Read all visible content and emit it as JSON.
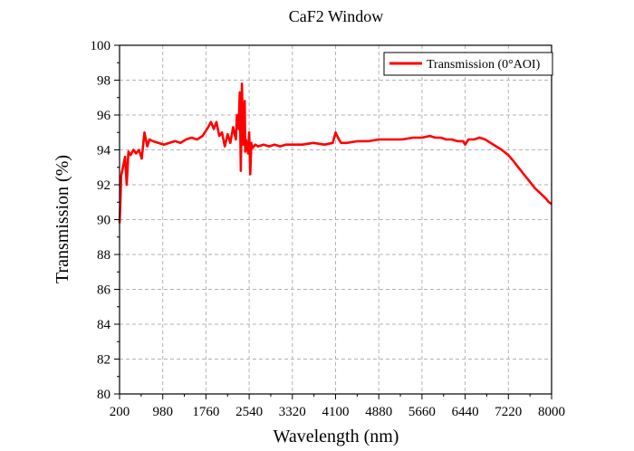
{
  "chart_data": {
    "type": "line",
    "title": "CaF2 Window",
    "xlabel": "Wavelength (nm)",
    "ylabel": "Transmission (%)",
    "xlim": [
      200,
      8000
    ],
    "ylim": [
      80,
      100
    ],
    "x_ticks": [
      200,
      980,
      1760,
      2540,
      3320,
      4100,
      4880,
      5660,
      6440,
      7220,
      8000
    ],
    "y_ticks": [
      80,
      82,
      84,
      86,
      88,
      90,
      92,
      94,
      96,
      98,
      100
    ],
    "grid": true,
    "legend_position": "top-right",
    "series": [
      {
        "name": "Transmission (0°AOI)",
        "color": "#ff0000",
        "x": [
          200,
          215,
          230,
          260,
          300,
          330,
          360,
          400,
          450,
          500,
          550,
          600,
          650,
          700,
          740,
          800,
          900,
          1000,
          1100,
          1200,
          1300,
          1400,
          1500,
          1600,
          1700,
          1800,
          1850,
          1900,
          1950,
          2000,
          2050,
          2100,
          2150,
          2200,
          2250,
          2300,
          2320,
          2350,
          2370,
          2390,
          2410,
          2430,
          2440,
          2450,
          2460,
          2470,
          2480,
          2500,
          2520,
          2540,
          2560,
          2580,
          2600,
          2650,
          2700,
          2800,
          2900,
          3000,
          3100,
          3200,
          3320,
          3500,
          3700,
          3900,
          4050,
          4100,
          4130,
          4160,
          4200,
          4300,
          4500,
          4700,
          4880,
          5100,
          5300,
          5500,
          5660,
          5800,
          5900,
          6000,
          6100,
          6200,
          6300,
          6400,
          6440,
          6500,
          6600,
          6700,
          6800,
          6900,
          7000,
          7100,
          7220,
          7300,
          7400,
          7500,
          7600,
          7700,
          7800,
          7900,
          7950,
          8000
        ],
        "y": [
          89.8,
          91.0,
          92.5,
          93.0,
          93.6,
          92.0,
          93.9,
          93.7,
          94.0,
          93.8,
          94.0,
          93.5,
          95.0,
          94.2,
          94.6,
          94.5,
          94.4,
          94.3,
          94.4,
          94.5,
          94.4,
          94.6,
          94.7,
          94.6,
          94.8,
          95.3,
          95.6,
          95.2,
          95.6,
          94.8,
          95.0,
          94.2,
          94.9,
          94.4,
          95.3,
          94.6,
          96.0,
          95.2,
          97.3,
          92.8,
          97.8,
          94.3,
          95.9,
          94.5,
          96.8,
          93.9,
          94.6,
          94.3,
          93.8,
          95.0,
          92.6,
          94.4,
          94.1,
          94.3,
          94.2,
          94.3,
          94.2,
          94.3,
          94.2,
          94.3,
          94.3,
          94.3,
          94.4,
          94.3,
          94.4,
          95.0,
          94.8,
          94.6,
          94.4,
          94.4,
          94.5,
          94.5,
          94.6,
          94.6,
          94.6,
          94.7,
          94.7,
          94.8,
          94.7,
          94.7,
          94.6,
          94.6,
          94.5,
          94.5,
          94.3,
          94.6,
          94.6,
          94.7,
          94.6,
          94.4,
          94.2,
          94.0,
          93.7,
          93.4,
          93.0,
          92.6,
          92.2,
          91.8,
          91.5,
          91.2,
          91.0,
          90.9
        ]
      }
    ]
  }
}
